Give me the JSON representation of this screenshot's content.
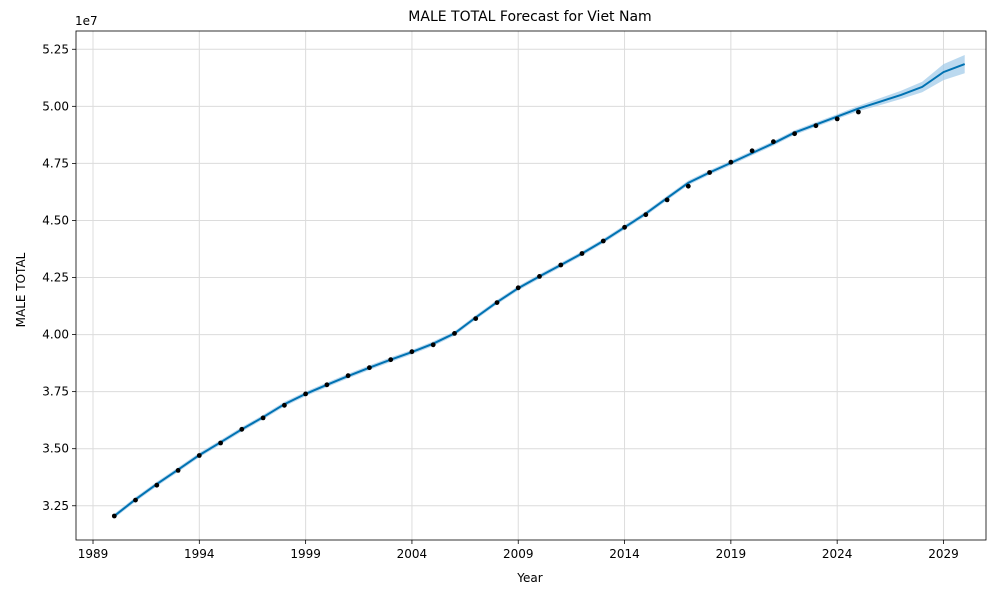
{
  "chart_data": {
    "type": "line",
    "title": "MALE TOTAL Forecast for Viet Nam",
    "xlabel": "Year",
    "ylabel": "MALE TOTAL",
    "y_offset_label": "1e7",
    "xlim": [
      1988.2,
      2031.0
    ],
    "ylim": [
      31000000,
      53300000
    ],
    "x_ticks": [
      1989,
      1994,
      1999,
      2004,
      2009,
      2014,
      2019,
      2024,
      2029
    ],
    "y_ticks": [
      {
        "value": 32500000,
        "label": "3.25"
      },
      {
        "value": 35000000,
        "label": "3.50"
      },
      {
        "value": 37500000,
        "label": "3.75"
      },
      {
        "value": 40000000,
        "label": "4.00"
      },
      {
        "value": 42500000,
        "label": "4.25"
      },
      {
        "value": 45000000,
        "label": "4.50"
      },
      {
        "value": 47500000,
        "label": "4.75"
      },
      {
        "value": 50000000,
        "label": "5.00"
      },
      {
        "value": 52500000,
        "label": "5.25"
      }
    ],
    "grid": true,
    "colors": {
      "forecast_line": "#0072B2",
      "interval_fill": "#9ec9e8",
      "observed_points": "#000000"
    },
    "observed": {
      "x": [
        1990,
        1991,
        1992,
        1993,
        1994,
        1995,
        1996,
        1997,
        1998,
        1999,
        2000,
        2001,
        2002,
        2003,
        2004,
        2005,
        2006,
        2007,
        2008,
        2009,
        2010,
        2011,
        2012,
        2013,
        2014,
        2015,
        2016,
        2017,
        2018,
        2019,
        2020,
        2021,
        2022,
        2023,
        2024,
        2025
      ],
      "y": [
        32050000,
        32750000,
        33400000,
        34050000,
        34700000,
        35250000,
        35850000,
        36350000,
        36900000,
        37400000,
        37800000,
        38200000,
        38550000,
        38900000,
        39250000,
        39550000,
        40050000,
        40700000,
        41400000,
        42050000,
        42550000,
        43050000,
        43550000,
        44100000,
        44700000,
        45250000,
        45900000,
        46500000,
        47100000,
        47550000,
        48050000,
        48450000,
        48800000,
        49150000,
        49450000,
        49750000
      ]
    },
    "forecast": {
      "x": [
        1990,
        1991,
        1992,
        1993,
        1994,
        1995,
        1996,
        1997,
        1998,
        1999,
        2000,
        2001,
        2002,
        2003,
        2004,
        2005,
        2006,
        2007,
        2008,
        2009,
        2010,
        2011,
        2012,
        2013,
        2014,
        2015,
        2016,
        2017,
        2018,
        2019,
        2020,
        2021,
        2022,
        2023,
        2024,
        2025,
        2026,
        2027,
        2028,
        2029,
        2030
      ],
      "y": [
        32050000,
        32780000,
        33450000,
        34080000,
        34720000,
        35280000,
        35850000,
        36380000,
        36950000,
        37400000,
        37800000,
        38180000,
        38550000,
        38900000,
        39230000,
        39600000,
        40050000,
        40750000,
        41420000,
        42030000,
        42550000,
        43050000,
        43550000,
        44100000,
        44700000,
        45300000,
        45980000,
        46650000,
        47100000,
        47520000,
        47950000,
        48380000,
        48850000,
        49200000,
        49550000,
        49900000,
        50200000,
        50500000,
        50850000,
        51500000,
        51850000
      ],
      "lower": [
        31950000,
        32680000,
        33350000,
        33980000,
        34620000,
        35180000,
        35750000,
        36280000,
        36850000,
        37300000,
        37700000,
        38080000,
        38450000,
        38800000,
        39130000,
        39500000,
        39950000,
        40650000,
        41320000,
        41930000,
        42450000,
        42950000,
        43450000,
        44000000,
        44600000,
        45200000,
        45880000,
        46550000,
        47000000,
        47420000,
        47850000,
        48280000,
        48750000,
        49100000,
        49450000,
        49780000,
        50050000,
        50320000,
        50620000,
        51150000,
        51450000
      ],
      "upper": [
        32150000,
        32880000,
        33550000,
        34180000,
        34820000,
        35380000,
        35950000,
        36480000,
        37050000,
        37500000,
        37900000,
        38280000,
        38650000,
        39000000,
        39330000,
        39700000,
        40150000,
        40850000,
        41520000,
        42130000,
        42650000,
        43150000,
        43650000,
        44200000,
        44800000,
        45400000,
        46080000,
        46750000,
        47200000,
        47620000,
        48050000,
        48480000,
        48950000,
        49300000,
        49650000,
        50020000,
        50350000,
        50680000,
        51080000,
        51850000,
        52250000
      ]
    }
  }
}
